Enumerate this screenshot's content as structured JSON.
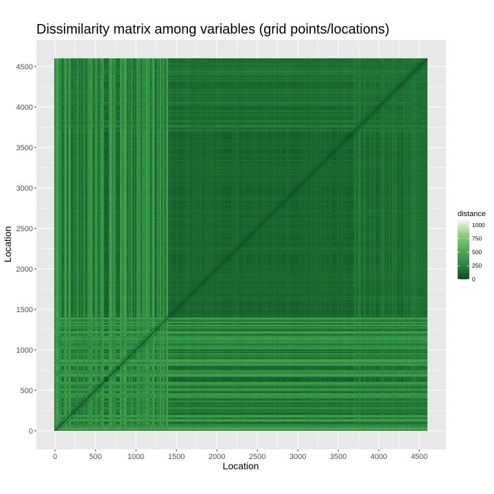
{
  "chart_data": {
    "type": "heatmap",
    "title": "Dissimilarity matrix among variables (grid points/locations)",
    "xlabel": "Location",
    "ylabel": "Location",
    "xlim": [
      -230,
      4830
    ],
    "ylim": [
      -230,
      4830
    ],
    "x_ticks": [
      0,
      500,
      1000,
      1500,
      2000,
      2500,
      3000,
      3500,
      4000,
      4500
    ],
    "y_ticks": [
      0,
      500,
      1000,
      1500,
      2000,
      2500,
      3000,
      3500,
      4000,
      4500
    ],
    "matrix_extent": [
      0,
      4600
    ],
    "grid": true,
    "legend": {
      "title": "distance",
      "placement": "right",
      "breaks": [
        1000,
        750,
        500,
        250,
        0
      ],
      "range": [
        0,
        1100
      ],
      "color_low": "#0d4a24",
      "color_high": "#f6fbf2"
    },
    "structure": {
      "low_distance_block": [
        1400,
        4600
      ],
      "high_variance_band": [
        0,
        1400
      ],
      "upper_right_secondary_block": [
        3700,
        4600
      ],
      "diagonal": 0
    }
  }
}
